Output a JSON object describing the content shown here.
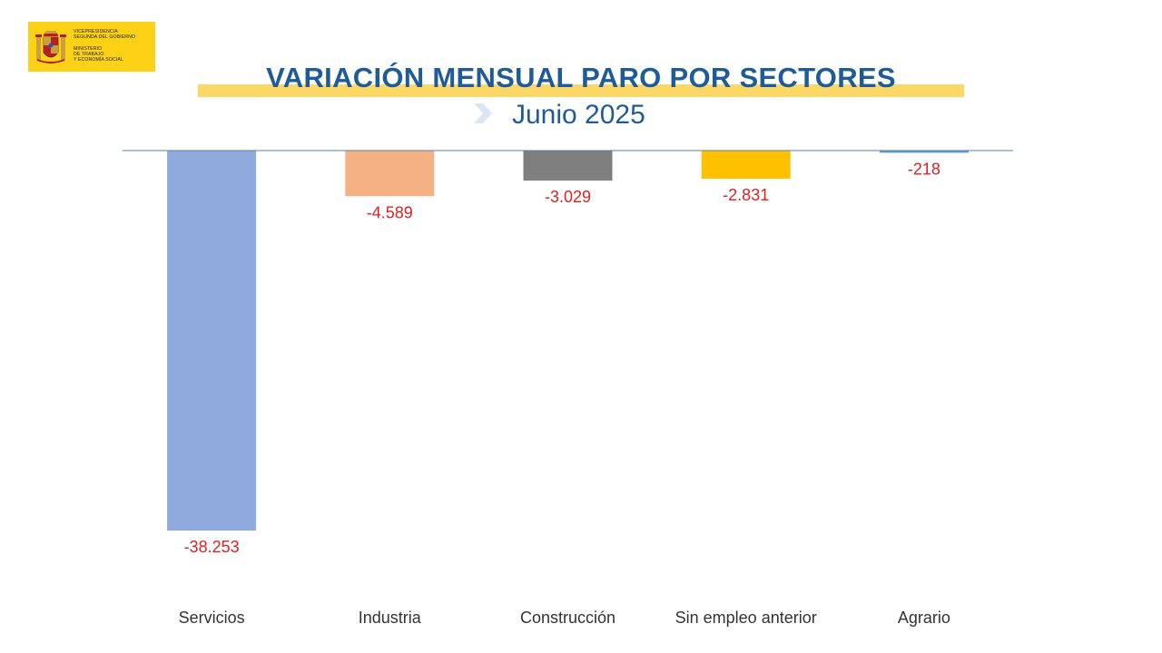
{
  "logo": {
    "lines": [
      "VICEPRESIDENCIA",
      "SEGUNDA DEL GOBIERNO",
      "MINISTERIO",
      "DE TRABAJO",
      "Y ECONOMÍA SOCIAL"
    ]
  },
  "header": {
    "title": "VARIACIÓN MENSUAL PARO POR SECTORES",
    "subtitle": "Junio 2025"
  },
  "colors": {
    "title": "#1f5c97",
    "highlight": "#fbd865",
    "value_label": "#e02020",
    "axis": "#5b7fa8"
  },
  "chart_data": {
    "type": "bar",
    "title": "VARIACIÓN MENSUAL PARO POR SECTORES",
    "subtitle": "Junio 2025",
    "categories": [
      "Servicios",
      "Industria",
      "Construcción",
      "Sin empleo anterior",
      "Agrario"
    ],
    "values": [
      -38253,
      -4589,
      -3029,
      -2831,
      -218
    ],
    "value_labels": [
      "-38.253",
      "-4.589",
      "-3.029",
      "-2.831",
      "-218"
    ],
    "bar_colors": [
      "#8faadc",
      "#f4b183",
      "#7f7f7f",
      "#ffc000",
      "#5b9bd5"
    ],
    "xlabel": "",
    "ylabel": "",
    "ylim": [
      -38253,
      0
    ],
    "grid": false,
    "legend": "none"
  }
}
